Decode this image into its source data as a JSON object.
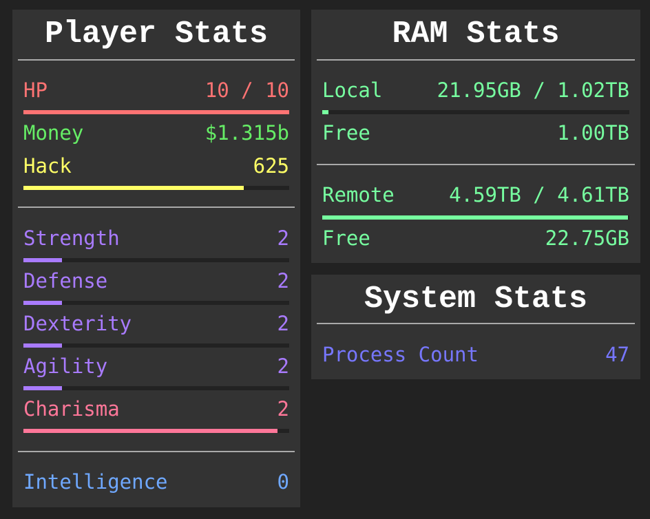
{
  "colors": {
    "hp": "#ff7373",
    "money": "#66ee66",
    "hack": "#ffff66",
    "combat": "#a97bff",
    "charisma": "#ff7799",
    "intelligence": "#6fa8ff",
    "ram": "#77ffa0",
    "process": "#7777ff"
  },
  "player": {
    "title": "Player Stats",
    "hp": {
      "label": "HP",
      "value": "10 / 10",
      "fill": 1.0
    },
    "money": {
      "label": "Money",
      "value": "$1.315b"
    },
    "hack": {
      "label": "Hack",
      "value": "625",
      "fill": 0.83
    },
    "skills": [
      {
        "label": "Strength",
        "value": "2",
        "fill": 0.145
      },
      {
        "label": "Defense",
        "value": "2",
        "fill": 0.145
      },
      {
        "label": "Dexterity",
        "value": "2",
        "fill": 0.145
      },
      {
        "label": "Agility",
        "value": "2",
        "fill": 0.145
      },
      {
        "label": "Charisma",
        "value": "2",
        "fill": 0.955
      }
    ],
    "intelligence": {
      "label": "Intelligence",
      "value": "0"
    }
  },
  "ram": {
    "title": "RAM Stats",
    "local": {
      "label": "Local",
      "value": "21.95GB / 1.02TB",
      "fill": 0.021,
      "free_label": "Free",
      "free_value": "1.00TB"
    },
    "remote": {
      "label": "Remote",
      "value": "4.59TB / 4.61TB",
      "fill": 0.995,
      "free_label": "Free",
      "free_value": "22.75GB"
    }
  },
  "system": {
    "title": "System Stats",
    "process_label": "Process Count",
    "process_value": "47"
  }
}
